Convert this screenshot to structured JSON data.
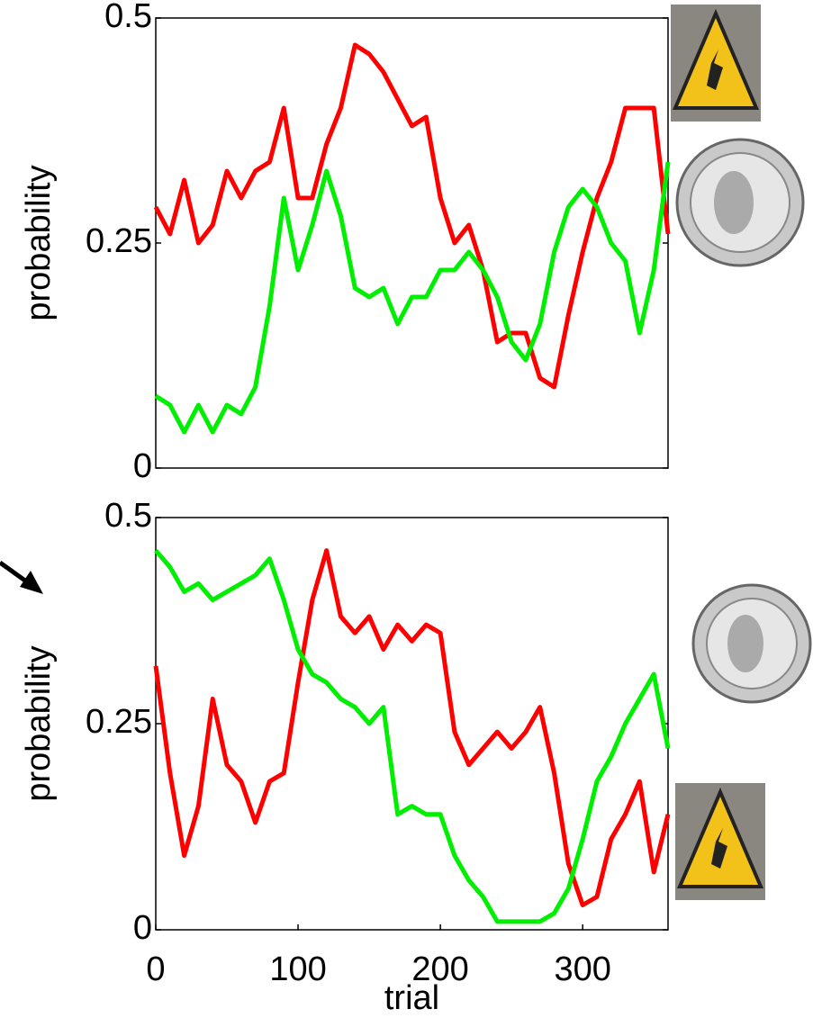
{
  "chart_data": [
    {
      "type": "line",
      "ylabel": "probability",
      "x": [
        0,
        10,
        20,
        30,
        40,
        50,
        60,
        70,
        80,
        90,
        100,
        110,
        120,
        130,
        140,
        150,
        160,
        170,
        180,
        190,
        200,
        210,
        220,
        230,
        240,
        250,
        260,
        270,
        280,
        290,
        300,
        310,
        320,
        330,
        340,
        350,
        360
      ],
      "series": [
        {
          "color": "#ff0000",
          "values": [
            0.29,
            0.26,
            0.32,
            0.25,
            0.27,
            0.33,
            0.3,
            0.33,
            0.34,
            0.4,
            0.3,
            0.3,
            0.36,
            0.4,
            0.47,
            0.46,
            0.44,
            0.41,
            0.38,
            0.39,
            0.3,
            0.25,
            0.27,
            0.22,
            0.14,
            0.15,
            0.15,
            0.1,
            0.09,
            0.17,
            0.24,
            0.3,
            0.34,
            0.4,
            0.4,
            0.4,
            0.26
          ]
        },
        {
          "color": "#00ee00",
          "values": [
            0.08,
            0.07,
            0.04,
            0.07,
            0.04,
            0.07,
            0.06,
            0.09,
            0.18,
            0.3,
            0.22,
            0.27,
            0.33,
            0.28,
            0.2,
            0.19,
            0.2,
            0.16,
            0.19,
            0.19,
            0.22,
            0.22,
            0.24,
            0.22,
            0.19,
            0.14,
            0.12,
            0.16,
            0.24,
            0.29,
            0.31,
            0.29,
            0.25,
            0.23,
            0.15,
            0.22,
            0.34
          ]
        }
      ],
      "xlim": [
        0,
        360
      ],
      "ylim": [
        0,
        0.5
      ],
      "yticks": [
        0,
        0.25,
        0.5
      ]
    },
    {
      "type": "line",
      "ylabel": "probability",
      "xlabel": "trial",
      "x": [
        0,
        10,
        20,
        30,
        40,
        50,
        60,
        70,
        80,
        90,
        100,
        110,
        120,
        130,
        140,
        150,
        160,
        170,
        180,
        190,
        200,
        210,
        220,
        230,
        240,
        250,
        260,
        270,
        280,
        290,
        300,
        310,
        320,
        330,
        340,
        350,
        360
      ],
      "series": [
        {
          "color": "#ff0000",
          "values": [
            0.32,
            0.19,
            0.09,
            0.15,
            0.28,
            0.2,
            0.18,
            0.13,
            0.18,
            0.19,
            0.3,
            0.4,
            0.46,
            0.38,
            0.36,
            0.38,
            0.34,
            0.37,
            0.35,
            0.37,
            0.36,
            0.24,
            0.2,
            0.22,
            0.24,
            0.22,
            0.24,
            0.27,
            0.19,
            0.08,
            0.03,
            0.04,
            0.11,
            0.14,
            0.18,
            0.07,
            0.14
          ]
        },
        {
          "color": "#00ee00",
          "values": [
            0.46,
            0.44,
            0.41,
            0.42,
            0.4,
            0.41,
            0.42,
            0.43,
            0.45,
            0.4,
            0.34,
            0.31,
            0.3,
            0.28,
            0.27,
            0.25,
            0.27,
            0.14,
            0.15,
            0.14,
            0.14,
            0.09,
            0.06,
            0.04,
            0.01,
            0.01,
            0.01,
            0.01,
            0.02,
            0.05,
            0.11,
            0.18,
            0.21,
            0.25,
            0.28,
            0.31,
            0.22
          ]
        }
      ],
      "xlim": [
        0,
        360
      ],
      "ylim": [
        0,
        0.5
      ],
      "yticks": [
        0,
        0.25,
        0.5
      ],
      "xticks": [
        0,
        100,
        200,
        300
      ]
    }
  ]
}
